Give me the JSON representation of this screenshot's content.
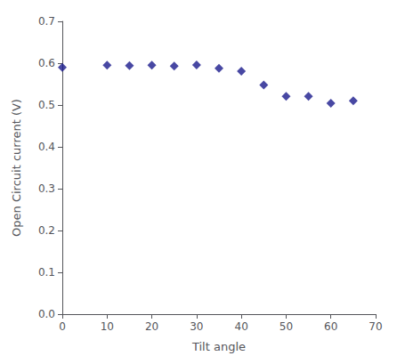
{
  "chart_data": {
    "type": "scatter",
    "x": [
      0,
      10,
      15,
      20,
      25,
      30,
      35,
      40,
      45,
      50,
      55,
      60,
      65
    ],
    "values": [
      0.59,
      0.595,
      0.594,
      0.595,
      0.593,
      0.596,
      0.588,
      0.581,
      0.548,
      0.521,
      0.521,
      0.504,
      0.51
    ],
    "marker": "diamond",
    "color": "#1a1a8c",
    "xlabel": "Tilt angle",
    "ylabel": "Open Circuit current (V)",
    "xlim": [
      0,
      70
    ],
    "ylim": [
      0,
      0.7
    ],
    "xticks": [
      0,
      10,
      20,
      30,
      40,
      50,
      60,
      70
    ],
    "yticks": [
      {
        "value": 0,
        "label": "0.0"
      },
      0.1,
      0.2,
      0.3,
      0.4,
      0.5,
      0.6,
      0.7
    ],
    "grid": false
  }
}
